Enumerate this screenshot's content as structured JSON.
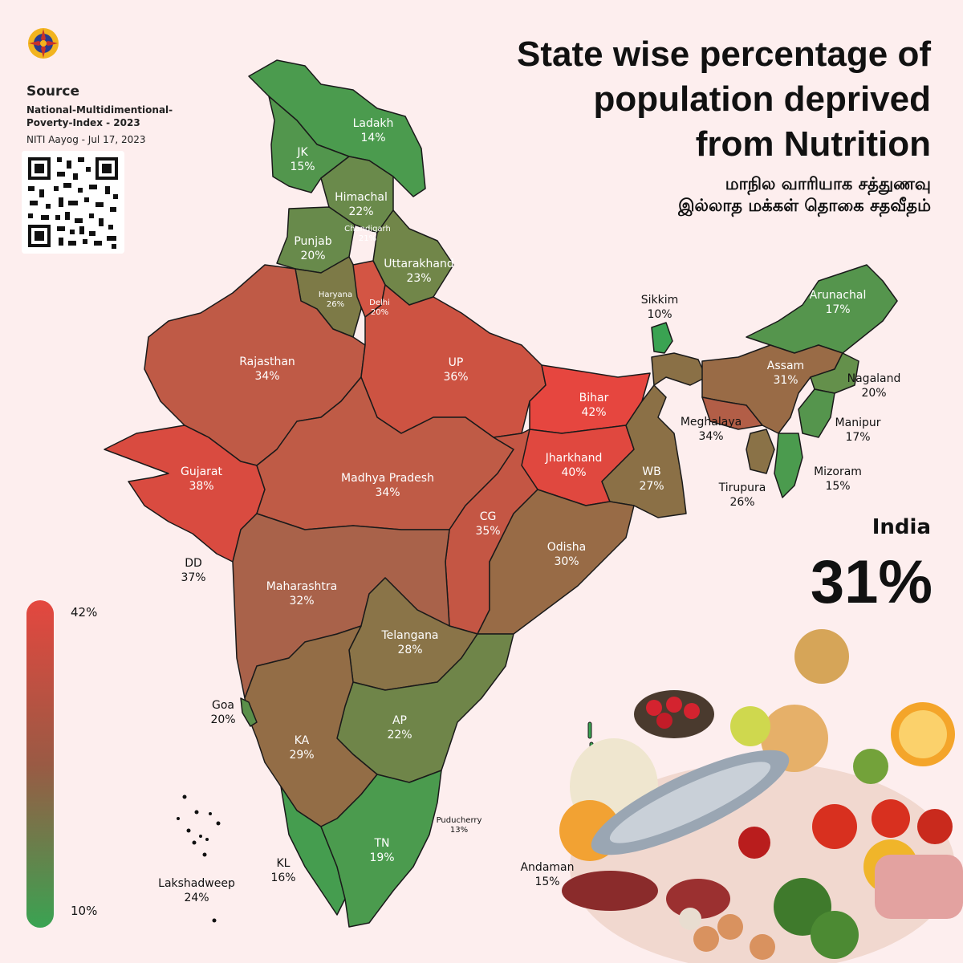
{
  "title": "State wise percentage of population deprived from Nutrition",
  "title_lines": [
    "State wise percentage of",
    "population deprived",
    "from Nutrition"
  ],
  "subtitle_lines": [
    "மாநில வாரியாக சத்துணவு",
    "இல்லாத மக்கள் தொகை சதவீதம்"
  ],
  "source": {
    "heading": "Source",
    "line1": "National-Multidimentional-",
    "line2": "Poverty-Index - 2023",
    "line3": "NITI Aayog - Jul 17, 2023"
  },
  "national": {
    "label": "India",
    "value": "31%"
  },
  "legend": {
    "max_label": "42%",
    "min_label": "10%",
    "max_color": "#e4473f",
    "min_color": "#3aa352"
  },
  "states": [
    {
      "key": "ladakh",
      "name": "Ladakh",
      "value": "14%"
    },
    {
      "key": "jk",
      "name": "JK",
      "value": "15%"
    },
    {
      "key": "himachal",
      "name": "Himachal",
      "value": "22%"
    },
    {
      "key": "chandigarh",
      "name": "Chandigarh",
      "value": "21%"
    },
    {
      "key": "punjab",
      "name": "Punjab",
      "value": "20%"
    },
    {
      "key": "uttarakhand",
      "name": "Uttarakhand",
      "value": "23%"
    },
    {
      "key": "haryana",
      "name": "Haryana",
      "value": "26%"
    },
    {
      "key": "delhi",
      "name": "Delhi",
      "value": "20%"
    },
    {
      "key": "rajasthan",
      "name": "Rajasthan",
      "value": "34%"
    },
    {
      "key": "up",
      "name": "UP",
      "value": "36%"
    },
    {
      "key": "bihar",
      "name": "Bihar",
      "value": "42%"
    },
    {
      "key": "gujarat",
      "name": "Gujarat",
      "value": "38%"
    },
    {
      "key": "mp",
      "name": "Madhya Pradesh",
      "value": "34%"
    },
    {
      "key": "jharkhand",
      "name": "Jharkhand",
      "value": "40%"
    },
    {
      "key": "wb",
      "name": "WB",
      "value": "27%"
    },
    {
      "key": "cg",
      "name": "CG",
      "value": "35%"
    },
    {
      "key": "odisha",
      "name": "Odisha",
      "value": "30%"
    },
    {
      "key": "maharashtra",
      "name": "Maharashtra",
      "value": "32%"
    },
    {
      "key": "telangana",
      "name": "Telangana",
      "value": "28%"
    },
    {
      "key": "ap",
      "name": "AP",
      "value": "22%"
    },
    {
      "key": "ka",
      "name": "KA",
      "value": "29%"
    },
    {
      "key": "tn",
      "name": "TN",
      "value": "19%"
    },
    {
      "key": "kl",
      "name": "KL",
      "value": "16%"
    },
    {
      "key": "goa",
      "name": "Goa",
      "value": "20%"
    },
    {
      "key": "dd",
      "name": "DD",
      "value": "37%"
    },
    {
      "key": "lakshadweep",
      "name": "Lakshadweep",
      "value": "24%"
    },
    {
      "key": "puducherry",
      "name": "Puducherry",
      "value": "13%"
    },
    {
      "key": "andaman",
      "name": "Andaman",
      "value": "15%"
    },
    {
      "key": "sikkim",
      "name": "Sikkim",
      "value": "10%"
    },
    {
      "key": "arunachal",
      "name": "Arunachal",
      "value": "17%"
    },
    {
      "key": "assam",
      "name": "Assam",
      "value": "31%"
    },
    {
      "key": "nagaland",
      "name": "Nagaland",
      "value": "20%"
    },
    {
      "key": "meghalaya",
      "name": "Meghalaya",
      "value": "34%"
    },
    {
      "key": "manipur",
      "name": "Manipur",
      "value": "17%"
    },
    {
      "key": "mizoram",
      "name": "Mizoram",
      "value": "15%"
    },
    {
      "key": "tripura",
      "name": "Tirupura",
      "value": "26%"
    }
  ]
}
